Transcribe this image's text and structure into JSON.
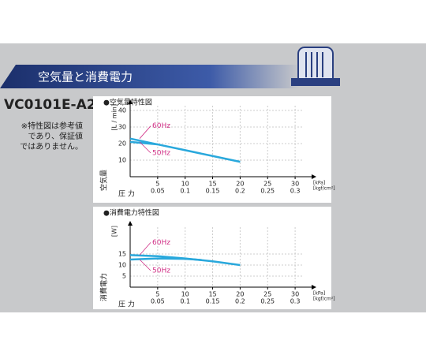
{
  "header": "空気量と消費電力",
  "model": "VC0101E-A2",
  "note": [
    "※特性図は参考値",
    "であり、保証値",
    "ではありません。"
  ],
  "chart_data": [
    {
      "type": "line",
      "title": "●空気量特性図",
      "y_unit": "[L / min]",
      "y_label": "空気量",
      "x_label": "圧 力",
      "x_unit": "[kPa]",
      "x2_unit": "[kgf/cm²]",
      "xlim": [
        0,
        33
      ],
      "xticks": [
        5,
        10,
        15,
        20,
        25,
        30
      ],
      "x2ticks": [
        {
          "value": 5,
          "label": "0.05"
        },
        {
          "value": 10,
          "label": "0.1"
        },
        {
          "value": 15,
          "label": "0.15"
        },
        {
          "value": 20,
          "label": "0.2"
        },
        {
          "value": 25,
          "label": "0.25"
        },
        {
          "value": 30,
          "label": "0.3"
        }
      ],
      "ylim": [
        0,
        40
      ],
      "yticks": [
        10,
        20,
        30,
        40
      ],
      "grid": true,
      "series": [
        {
          "name": "60Hz",
          "color": "#29a8dc",
          "x": [
            0,
            5,
            10,
            15,
            20
          ],
          "values": [
            23,
            19.5,
            16,
            12.5,
            9
          ]
        },
        {
          "name": "50Hz",
          "color": "#29a8dc",
          "x": [
            0,
            5
          ],
          "values": [
            21,
            19.5
          ]
        }
      ]
    },
    {
      "type": "line",
      "title": "●消費電力特性図",
      "y_unit": "[W]",
      "y_label": "消費電力",
      "x_label": "圧 力",
      "x_unit": "[kPa]",
      "x2_unit": "[kgf/cm²]",
      "xlim": [
        0,
        33
      ],
      "xticks": [
        5,
        10,
        15,
        20,
        25,
        30
      ],
      "x2ticks": [
        {
          "value": 5,
          "label": "0.05"
        },
        {
          "value": 10,
          "label": "0.1"
        },
        {
          "value": 15,
          "label": "0.15"
        },
        {
          "value": 20,
          "label": "0.2"
        },
        {
          "value": 25,
          "label": "0.25"
        },
        {
          "value": 30,
          "label": "0.3"
        }
      ],
      "ylim": [
        0,
        25
      ],
      "yticks": [
        5,
        10,
        15
      ],
      "grid": true,
      "series": [
        {
          "name": "60Hz",
          "color": "#29a8dc",
          "x": [
            0,
            5,
            10,
            15,
            20
          ],
          "values": [
            14.5,
            14,
            13,
            11.7,
            10
          ]
        },
        {
          "name": "50Hz",
          "color": "#29a8dc",
          "x": [
            0,
            5,
            10,
            13
          ],
          "values": [
            12.5,
            13,
            12.8,
            12.3
          ]
        }
      ]
    }
  ]
}
